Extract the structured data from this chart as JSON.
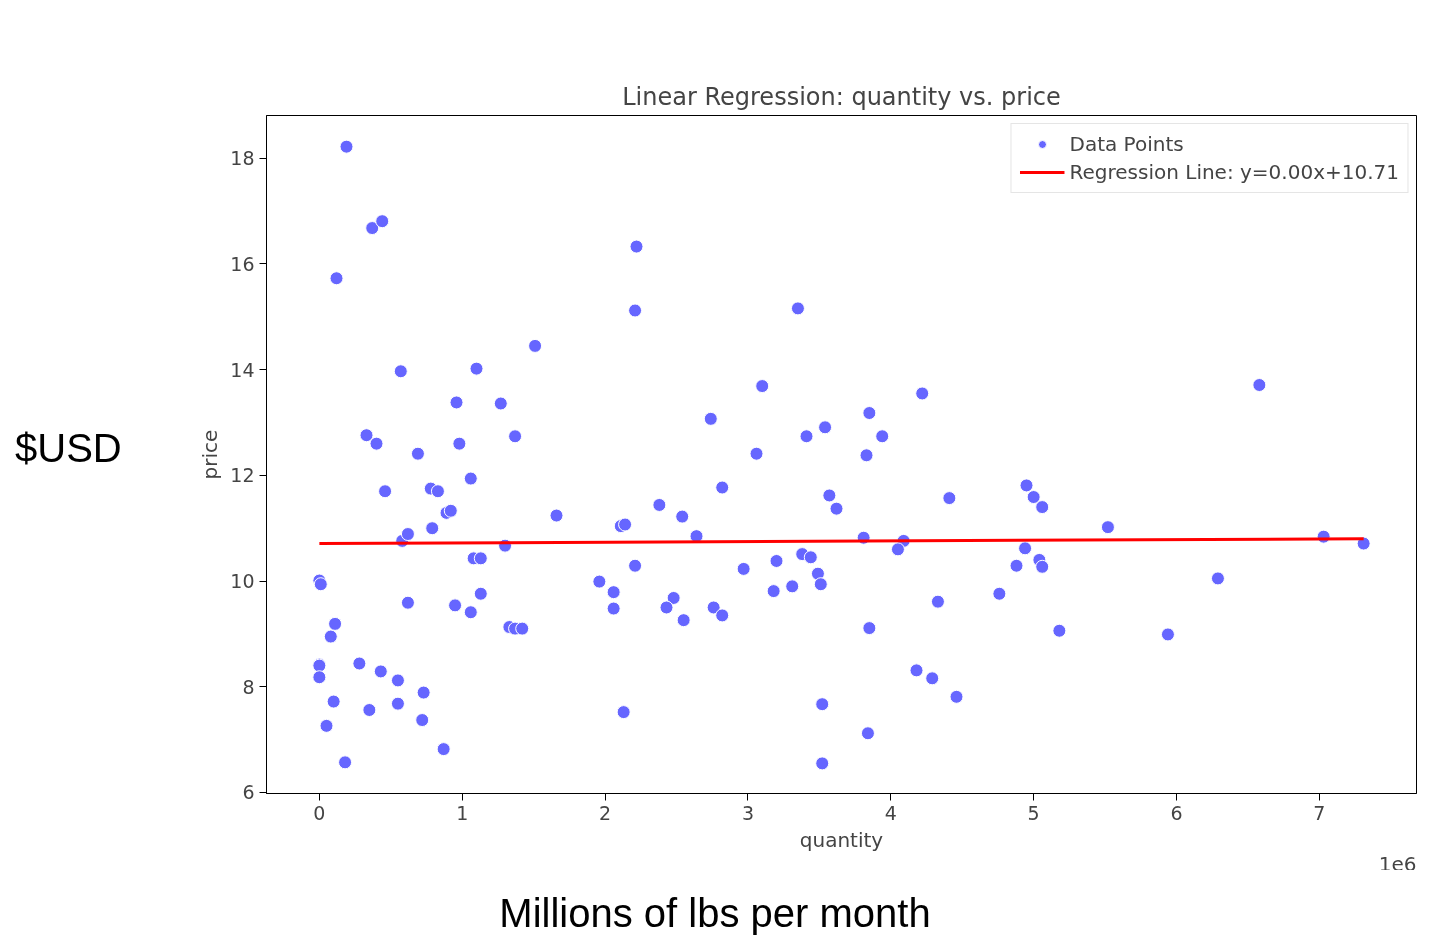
{
  "chart_data": {
    "type": "scatter",
    "title": "Linear Regression: quantity vs. price",
    "xlabel": "quantity",
    "ylabel": "price",
    "annotations": [
      "1e6",
      "$USD",
      "Millions of lbs per month"
    ],
    "xlim": [
      -0.37,
      7.68
    ],
    "xticks": [
      0,
      1,
      2,
      3,
      4,
      5,
      6,
      7
    ],
    "ylim": [
      5.98,
      18.81
    ],
    "yticks": [
      6,
      8,
      10,
      12,
      14,
      16,
      18
    ],
    "grid": false,
    "legend": "top right",
    "series": [
      {
        "name": "Data Points",
        "marker": "circle",
        "color": "#6666ff",
        "x": [
          0.0,
          0.01,
          0.0,
          0.0,
          0.0,
          0.05,
          0.1,
          0.08,
          0.11,
          0.18,
          0.19,
          0.12,
          0.37,
          0.44,
          0.33,
          0.4,
          0.46,
          0.28,
          0.35,
          0.43,
          0.55,
          0.55,
          0.73,
          0.72,
          0.87,
          0.57,
          0.58,
          0.62,
          0.62,
          0.69,
          0.78,
          0.83,
          0.79,
          0.89,
          0.92,
          0.96,
          0.98,
          0.95,
          1.06,
          1.06,
          1.1,
          1.08,
          1.13,
          1.13,
          1.27,
          1.37,
          1.3,
          1.33,
          1.37,
          1.42,
          1.51,
          1.66,
          2.22,
          2.21,
          3.35,
          3.1,
          2.74,
          4.22,
          3.85,
          3.54,
          3.41,
          3.94,
          3.06,
          3.83,
          2.82,
          3.57,
          3.62,
          4.41,
          2.38,
          2.54,
          2.11,
          2.14,
          2.64,
          3.81,
          4.09,
          4.05,
          2.21,
          1.96,
          2.06,
          2.06,
          2.97,
          3.2,
          3.38,
          3.44,
          3.49,
          3.51,
          3.18,
          3.31,
          2.48,
          2.43,
          2.55,
          2.76,
          2.82,
          4.33,
          3.85,
          4.18,
          4.29,
          4.46,
          3.52,
          3.84,
          3.52,
          2.13,
          6.58,
          4.95,
          5.0,
          5.06,
          5.52,
          4.94,
          5.04,
          5.06,
          4.88,
          7.03,
          7.31,
          6.29,
          4.76,
          5.18,
          5.94
        ],
        "values": [
          10.01,
          9.94,
          8.42,
          8.4,
          8.18,
          7.26,
          7.72,
          8.95,
          9.19,
          6.57,
          18.22,
          15.73,
          16.68,
          16.81,
          12.76,
          12.6,
          11.7,
          8.44,
          7.56,
          8.29,
          8.12,
          7.68,
          7.89,
          7.37,
          6.82,
          13.97,
          10.76,
          10.89,
          9.59,
          12.41,
          11.75,
          11.7,
          11.0,
          11.29,
          11.33,
          13.38,
          12.6,
          9.54,
          9.41,
          11.94,
          14.02,
          10.43,
          10.43,
          9.76,
          13.36,
          12.74,
          10.67,
          9.13,
          9.1,
          9.1,
          14.45,
          11.24,
          16.33,
          15.12,
          15.16,
          13.69,
          13.07,
          13.55,
          13.18,
          12.91,
          12.74,
          12.74,
          12.41,
          12.38,
          11.77,
          11.62,
          11.37,
          11.57,
          11.44,
          11.22,
          11.04,
          11.07,
          10.85,
          10.82,
          10.76,
          10.6,
          10.29,
          9.99,
          9.79,
          9.48,
          10.23,
          10.38,
          10.51,
          10.45,
          10.14,
          9.94,
          9.81,
          9.9,
          9.68,
          9.5,
          9.26,
          9.5,
          9.35,
          9.61,
          9.11,
          8.31,
          8.16,
          7.81,
          7.67,
          7.12,
          6.55,
          7.52,
          13.71,
          11.81,
          11.59,
          11.4,
          11.02,
          10.62,
          10.4,
          10.27,
          10.29,
          10.84,
          10.71,
          10.05,
          9.76,
          9.06,
          8.99
        ]
      },
      {
        "name": "Regression Line: y=0.00x+10.71",
        "type": "line",
        "color": "#ff0000",
        "x": [
          0,
          7.31
        ],
        "values": [
          10.71,
          10.8
        ]
      }
    ]
  }
}
